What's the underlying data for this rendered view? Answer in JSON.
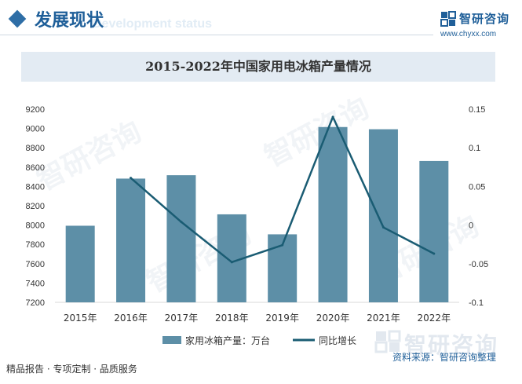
{
  "header": {
    "title": "发展现状",
    "subtitle": "Development status",
    "brand": "智研咨询",
    "url": "www.chyxx.com"
  },
  "chart_data": {
    "type": "bar",
    "title": "2015-2022年中国家用电冰箱产量情况",
    "categories": [
      "2015年",
      "2016年",
      "2017年",
      "2018年",
      "2019年",
      "2020年",
      "2021年",
      "2022年"
    ],
    "series": [
      {
        "name": "家用冰箱产量：万台",
        "type": "bar",
        "axis": "left",
        "color": "#5d8fa7",
        "values": [
          7993,
          8481,
          8516,
          8111,
          7904,
          9015,
          8992,
          8664
        ]
      },
      {
        "name": "同比增长",
        "type": "line",
        "axis": "right",
        "color": "#1a5c73",
        "values": [
          null,
          0.061,
          0.004,
          -0.048,
          -0.026,
          0.14,
          -0.003,
          -0.037
        ]
      }
    ],
    "yleft": {
      "min": 7200,
      "max": 9200,
      "ticks": [
        "7200",
        "7400",
        "7600",
        "7800",
        "8000",
        "8200",
        "8400",
        "8600",
        "8800",
        "9000",
        "9200"
      ]
    },
    "yright": {
      "min": -0.1,
      "max": 0.15,
      "ticks": [
        "-0.1",
        "-0.05",
        "0",
        "0.05",
        "0.1",
        "0.15"
      ]
    },
    "grid": false,
    "legend": "bottom"
  },
  "footer": {
    "left": "精品报告 · 专项定制 · 品质服务",
    "source": "资料来源：智研咨询整理",
    "brand": "智研咨询"
  }
}
